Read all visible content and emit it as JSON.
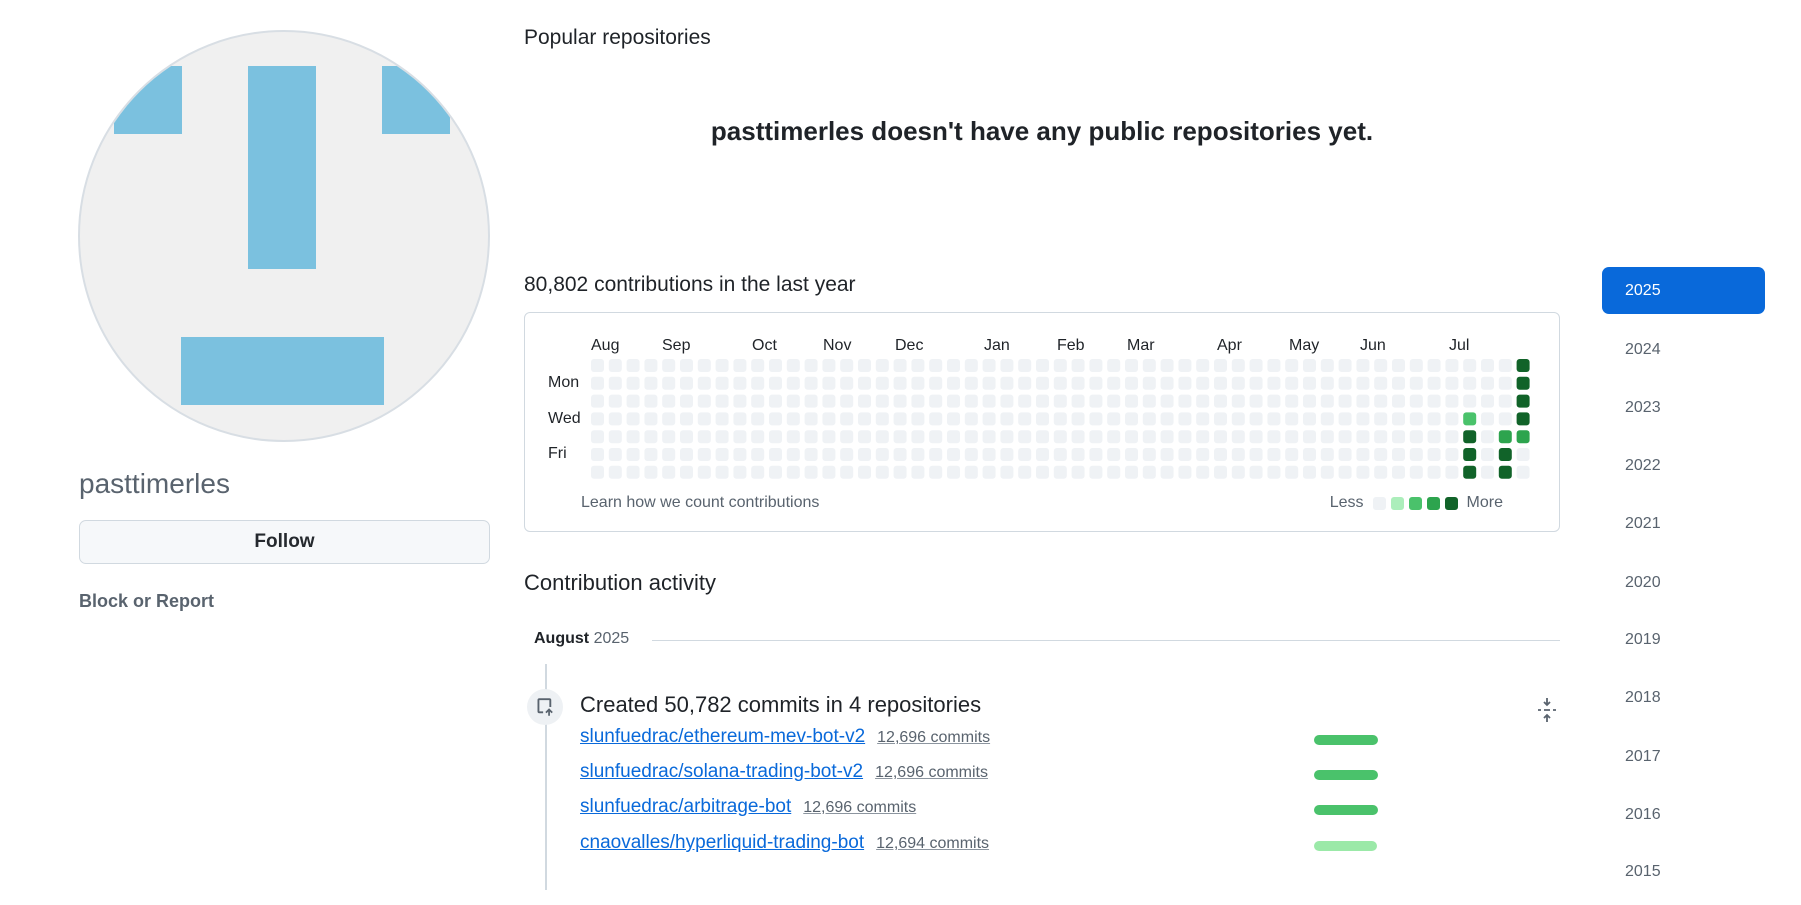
{
  "profile": {
    "username": "pasttimerles",
    "follow_label": "Follow",
    "block_label": "Block or Report"
  },
  "popular": {
    "heading": "Popular repositories",
    "empty_message": "pasttimerles doesn't have any public repositories yet."
  },
  "contributions": {
    "heading": "80,802 contributions in the last year",
    "months": [
      "Aug",
      "Sep",
      "Oct",
      "Nov",
      "Dec",
      "Jan",
      "Feb",
      "Mar",
      "Apr",
      "May",
      "Jun",
      "Jul"
    ],
    "day_labels": [
      "Mon",
      "Wed",
      "Fri"
    ],
    "learn_link": "Learn how we count contributions",
    "legend_less": "Less",
    "legend_more": "More",
    "level_colors": [
      "#eff2f5",
      "#aceebb",
      "#4ac26b",
      "#2da44e",
      "#116329"
    ],
    "weeks": 53,
    "active_cells": [
      {
        "week": 49,
        "day": 3,
        "level": 2
      },
      {
        "week": 49,
        "day": 4,
        "level": 4
      },
      {
        "week": 49,
        "day": 5,
        "level": 4
      },
      {
        "week": 49,
        "day": 6,
        "level": 4
      },
      {
        "week": 51,
        "day": 4,
        "level": 3
      },
      {
        "week": 51,
        "day": 5,
        "level": 4
      },
      {
        "week": 51,
        "day": 6,
        "level": 4
      },
      {
        "week": 52,
        "day": 0,
        "level": 4
      },
      {
        "week": 52,
        "day": 1,
        "level": 4
      },
      {
        "week": 52,
        "day": 2,
        "level": 4
      },
      {
        "week": 52,
        "day": 3,
        "level": 4
      },
      {
        "week": 52,
        "day": 4,
        "level": 3
      }
    ]
  },
  "activity": {
    "heading": "Contribution activity",
    "month": "August",
    "year": "2025",
    "commits_title": "Created 50,782 commits in 4 repositories",
    "repos": [
      {
        "name": "slunfuedrac/ethereum-mev-bot-v2",
        "commits": "12,696 commits",
        "share": 1.0,
        "color": "#4ac26b"
      },
      {
        "name": "slunfuedrac/solana-trading-bot-v2",
        "commits": "12,696 commits",
        "share": 1.0,
        "color": "#4ac26b"
      },
      {
        "name": "slunfuedrac/arbitrage-bot",
        "commits": "12,696 commits",
        "share": 1.0,
        "color": "#4ac26b"
      },
      {
        "name": "cnaovalles/hyperliquid-trading-bot",
        "commits": "12,694 commits",
        "share": 0.99,
        "color": "#9be9a8"
      }
    ]
  },
  "years": [
    "2025",
    "2024",
    "2023",
    "2022",
    "2021",
    "2020",
    "2019",
    "2018",
    "2017",
    "2016",
    "2015"
  ],
  "selected_year": "2025"
}
